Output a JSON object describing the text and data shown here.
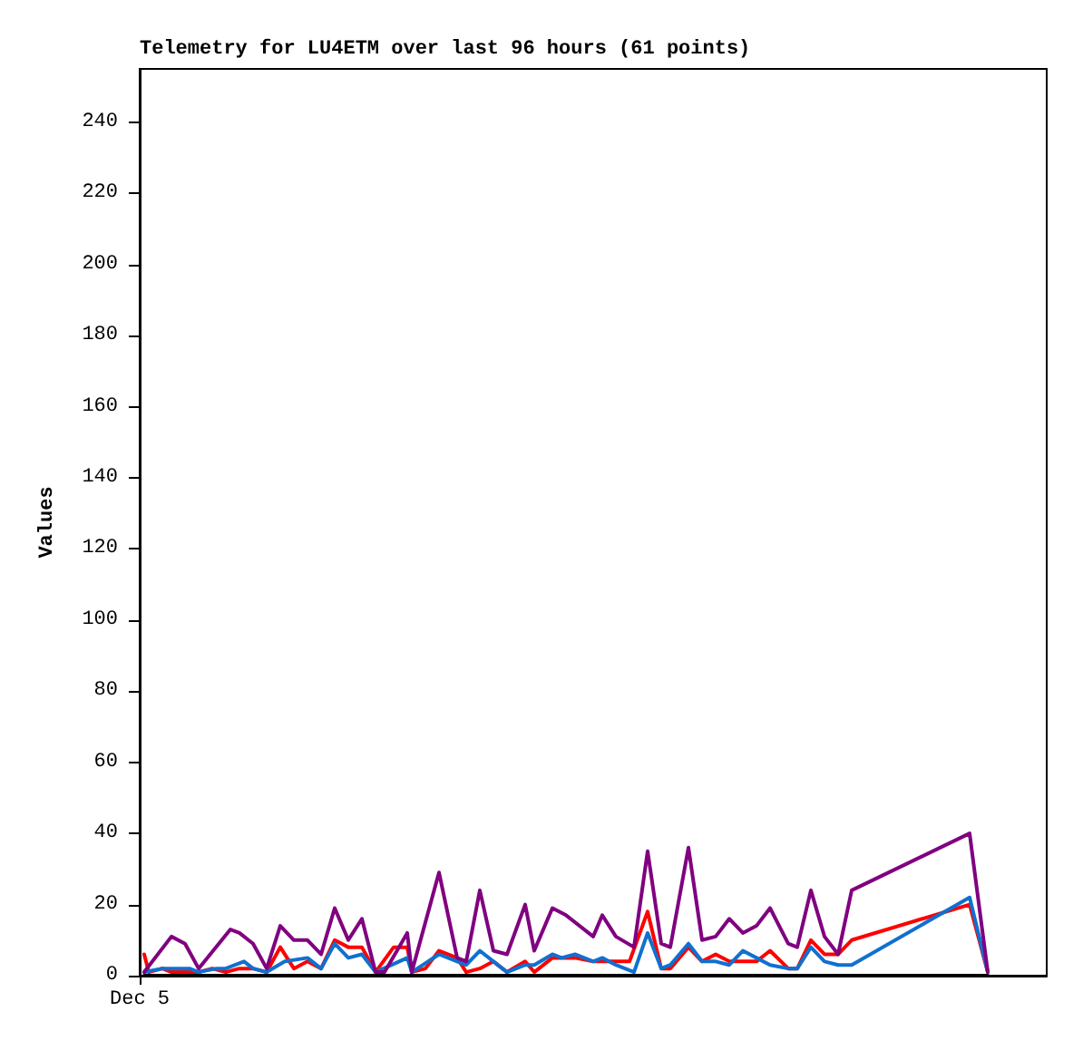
{
  "chart_data": {
    "type": "line",
    "title": "Telemetry for LU4ETM over last 96 hours (61 points)",
    "ylabel": "Values",
    "categories": [
      "Dec 5",
      null,
      null,
      null,
      null,
      null,
      null,
      null,
      null,
      null,
      null,
      null,
      null,
      null,
      null,
      null,
      null,
      null,
      null,
      null,
      null,
      null,
      null,
      null,
      null,
      null,
      null,
      null,
      null,
      null,
      null,
      null,
      null,
      null,
      null,
      null,
      null,
      null,
      null,
      null,
      null,
      null,
      null,
      null,
      null,
      null,
      null,
      null,
      null,
      null,
      null,
      null,
      null,
      null,
      null,
      null,
      null,
      null,
      null,
      null,
      null,
      null,
      null,
      null,
      null,
      null,
      null,
      null,
      null,
      null,
      null,
      null,
      null,
      null,
      null,
      null,
      null,
      null,
      null,
      null,
      null,
      null,
      null,
      null,
      null,
      null,
      null,
      null,
      null,
      null,
      null,
      null,
      null,
      null,
      null,
      null,
      null,
      null,
      null,
      null,
      null,
      null,
      null,
      null,
      null,
      null,
      null,
      null,
      null,
      null,
      null,
      null,
      null,
      null,
      null,
      null,
      null,
      null,
      null,
      null,
      null,
      null,
      null,
      null,
      null,
      null,
      null,
      null,
      null,
      null,
      null,
      null,
      null,
      null,
      null,
      null,
      null,
      null,
      null,
      null,
      null,
      null,
      null,
      null,
      null,
      null,
      null,
      null,
      null,
      null,
      null,
      null,
      null,
      null,
      null,
      null,
      null,
      null,
      null,
      null,
      null,
      null,
      null,
      null,
      null,
      null,
      null,
      null,
      null,
      null,
      null,
      null,
      null,
      null,
      null,
      null,
      null,
      null,
      null,
      null,
      null,
      null,
      null,
      null,
      null,
      null,
      null,
      null,
      null,
      null,
      null,
      null,
      null,
      null,
      null,
      null,
      null,
      null,
      null,
      null,
      null
    ],
    "ylim": [
      0,
      255
    ],
    "yticks": [
      0,
      20,
      40,
      60,
      80,
      100,
      120,
      140,
      160,
      180,
      200,
      220,
      240
    ],
    "grid": false,
    "marker": "none",
    "line_style": "solid",
    "series": [
      {
        "color": "#000000",
        "values": [
          null,
          0,
          0,
          0,
          0,
          0,
          0,
          0,
          0,
          0,
          0,
          0,
          0,
          0,
          0,
          0,
          0,
          0,
          0,
          0,
          0,
          0,
          0,
          0,
          0,
          0,
          0,
          0,
          0,
          0,
          0,
          0,
          0,
          0,
          0,
          0,
          0,
          0,
          0,
          0,
          0,
          0,
          0,
          0,
          0,
          0,
          0,
          0,
          0,
          0,
          0,
          0,
          0,
          0,
          0,
          0,
          0,
          0,
          0,
          0,
          0,
          0,
          0,
          0,
          0,
          0,
          0,
          0,
          0,
          0,
          0,
          0,
          0,
          0,
          0,
          0,
          0,
          0,
          0,
          0,
          0,
          0,
          0,
          0,
          0,
          0,
          0,
          0,
          0,
          0,
          0,
          0,
          0,
          0,
          0,
          0,
          0,
          0,
          0,
          0,
          0,
          0,
          0,
          0,
          0,
          0,
          0,
          0,
          0,
          0,
          0,
          0,
          0,
          0,
          0,
          0,
          0,
          0,
          0,
          0,
          0,
          0,
          0,
          0,
          0,
          0,
          0,
          0,
          0,
          0,
          0,
          0,
          0,
          0,
          0,
          0,
          0,
          0,
          0,
          0,
          0,
          0,
          0,
          0,
          0,
          0,
          0,
          0,
          0,
          0,
          0,
          0,
          0,
          0,
          0,
          0,
          0,
          0,
          0,
          0,
          0,
          0,
          0,
          0,
          0,
          0,
          0,
          0,
          0,
          0,
          0,
          0,
          0,
          0,
          0,
          0,
          0,
          0,
          0,
          0,
          0,
          0,
          0,
          0,
          0,
          0,
          0,
          0,
          null,
          null,
          null,
          null,
          null,
          null,
          null,
          null,
          null,
          null,
          null,
          null,
          null
        ]
      },
      {
        "color": "#ff0000",
        "values": [
          null,
          6,
          1,
          null,
          null,
          2,
          null,
          1,
          null,
          null,
          null,
          null,
          null,
          1,
          null,
          null,
          2,
          null,
          null,
          1,
          null,
          null,
          2,
          null,
          null,
          2,
          null,
          null,
          1,
          null,
          null,
          8,
          null,
          null,
          2,
          null,
          null,
          4,
          null,
          null,
          2,
          null,
          null,
          10,
          null,
          null,
          8,
          null,
          null,
          8,
          null,
          null,
          1,
          null,
          null,
          null,
          8,
          null,
          null,
          8,
          1,
          null,
          null,
          2,
          null,
          null,
          7,
          null,
          null,
          null,
          5,
          null,
          1,
          null,
          null,
          2,
          null,
          null,
          4,
          null,
          null,
          1,
          null,
          null,
          null,
          4,
          null,
          1,
          null,
          null,
          null,
          5,
          null,
          null,
          null,
          null,
          5,
          null,
          null,
          null,
          4,
          null,
          null,
          null,
          null,
          null,
          null,
          null,
          4,
          null,
          null,
          null,
          18,
          null,
          null,
          2,
          null,
          2,
          null,
          null,
          null,
          8,
          null,
          null,
          4,
          null,
          null,
          6,
          null,
          null,
          4,
          null,
          null,
          null,
          null,
          null,
          4,
          null,
          null,
          7,
          null,
          null,
          null,
          2,
          null,
          2,
          null,
          null,
          10,
          null,
          null,
          6,
          null,
          null,
          6,
          null,
          null,
          10,
          null,
          null,
          null,
          null,
          null,
          null,
          null,
          null,
          null,
          null,
          null,
          null,
          null,
          null,
          null,
          null,
          null,
          null,
          null,
          null,
          null,
          null,
          null,
          null,
          null,
          20,
          null,
          null,
          null,
          1,
          null,
          null,
          null,
          null,
          null,
          null,
          null,
          null,
          null,
          null,
          null,
          null,
          null
        ]
      },
      {
        "color": "#1070d0",
        "values": [
          null,
          1,
          null,
          null,
          null,
          2,
          null,
          null,
          null,
          null,
          null,
          2,
          null,
          1,
          null,
          null,
          null,
          2,
          null,
          2,
          null,
          null,
          null,
          4,
          null,
          2,
          null,
          null,
          1,
          null,
          null,
          null,
          4,
          null,
          null,
          null,
          null,
          5,
          null,
          null,
          2,
          null,
          null,
          9,
          null,
          null,
          5,
          null,
          null,
          6,
          null,
          null,
          1,
          null,
          null,
          null,
          null,
          null,
          null,
          5,
          1,
          null,
          null,
          null,
          null,
          null,
          6,
          null,
          null,
          null,
          4,
          null,
          3,
          null,
          null,
          7,
          null,
          null,
          4,
          null,
          null,
          1,
          null,
          null,
          null,
          3,
          null,
          3,
          null,
          null,
          null,
          6,
          null,
          5,
          null,
          null,
          6,
          null,
          null,
          null,
          4,
          null,
          5,
          null,
          null,
          3,
          null,
          null,
          null,
          1,
          null,
          null,
          12,
          null,
          null,
          2,
          null,
          3,
          null,
          null,
          null,
          9,
          null,
          null,
          4,
          null,
          null,
          4,
          null,
          null,
          3,
          null,
          null,
          7,
          null,
          null,
          5,
          null,
          null,
          3,
          null,
          null,
          null,
          2,
          null,
          2,
          null,
          null,
          8,
          null,
          null,
          4,
          null,
          null,
          3,
          null,
          null,
          3,
          null,
          null,
          null,
          null,
          null,
          null,
          null,
          null,
          null,
          null,
          null,
          null,
          null,
          null,
          null,
          null,
          null,
          null,
          null,
          null,
          null,
          null,
          null,
          null,
          null,
          22,
          null,
          null,
          null,
          1,
          null,
          null,
          null,
          null,
          null,
          null,
          null,
          null,
          null,
          null,
          null,
          null,
          null
        ]
      },
      {
        "color": "#800080",
        "values": [
          null,
          1,
          null,
          null,
          null,
          null,
          null,
          11,
          null,
          null,
          9,
          null,
          null,
          2,
          null,
          null,
          null,
          null,
          null,
          null,
          13,
          null,
          12,
          null,
          null,
          9,
          null,
          null,
          2,
          null,
          null,
          14,
          null,
          null,
          10,
          null,
          null,
          10,
          null,
          null,
          6,
          null,
          null,
          19,
          null,
          null,
          10,
          null,
          null,
          16,
          null,
          null,
          1,
          null,
          1,
          null,
          null,
          null,
          null,
          12,
          1,
          null,
          null,
          null,
          null,
          null,
          29,
          null,
          null,
          null,
          5,
          null,
          4,
          null,
          null,
          24,
          null,
          null,
          7,
          null,
          null,
          6,
          null,
          null,
          null,
          20,
          null,
          7,
          null,
          null,
          null,
          19,
          null,
          null,
          17,
          null,
          null,
          null,
          null,
          null,
          11,
          null,
          17,
          null,
          null,
          11,
          null,
          null,
          null,
          8,
          null,
          null,
          35,
          null,
          null,
          9,
          null,
          8,
          null,
          null,
          null,
          36,
          null,
          null,
          10,
          null,
          null,
          11,
          null,
          null,
          16,
          null,
          null,
          12,
          null,
          null,
          14,
          null,
          null,
          19,
          null,
          null,
          null,
          9,
          null,
          8,
          null,
          null,
          24,
          null,
          null,
          11,
          null,
          null,
          6,
          null,
          null,
          24,
          null,
          null,
          null,
          null,
          null,
          null,
          null,
          null,
          null,
          null,
          null,
          null,
          null,
          null,
          null,
          null,
          null,
          null,
          null,
          null,
          null,
          null,
          null,
          null,
          null,
          40,
          null,
          null,
          null,
          1,
          null,
          null,
          null,
          null,
          null,
          null,
          null,
          null,
          null,
          null,
          null,
          null,
          null
        ]
      }
    ]
  }
}
